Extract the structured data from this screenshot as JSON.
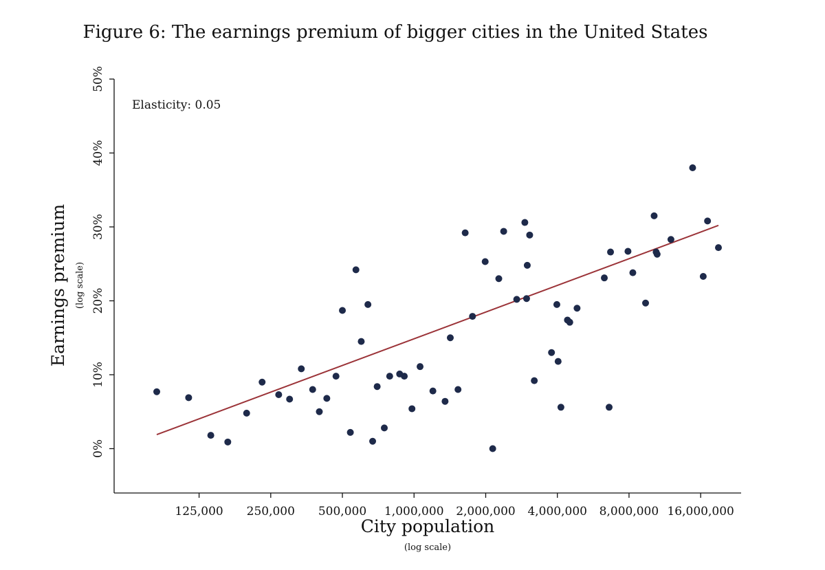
{
  "chart_data": {
    "type": "scatter",
    "title": "Figure 6: The earnings premium of bigger cities in the United States",
    "xlabel": "City population",
    "xlabel_note": "(log scale)",
    "ylabel": "Earnings premium",
    "ylabel_note": "(log scale)",
    "annotation": "Elasticity: 0.05",
    "x_scale": "log2",
    "xlim": [
      70000,
      24000000
    ],
    "ylim": [
      -0.06,
      0.5
    ],
    "x_ticks": [
      {
        "value": 125000,
        "label": "125,000"
      },
      {
        "value": 250000,
        "label": "250,000"
      },
      {
        "value": 500000,
        "label": "500,000"
      },
      {
        "value": 1000000,
        "label": "1,000,000"
      },
      {
        "value": 2000000,
        "label": "2,000,000"
      },
      {
        "value": 4000000,
        "label": "4,000,000"
      },
      {
        "value": 8000000,
        "label": "8,000,000"
      },
      {
        "value": 16000000,
        "label": "16,000,000"
      }
    ],
    "y_ticks": [
      {
        "value": 0,
        "label": "0%"
      },
      {
        "value": 0.1,
        "label": "10%"
      },
      {
        "value": 0.2,
        "label": "20%"
      },
      {
        "value": 0.3,
        "label": "30%"
      },
      {
        "value": 0.4,
        "label": "40%"
      },
      {
        "value": 0.5,
        "label": "50%"
      }
    ],
    "fit_line": {
      "x": [
        83000,
        19000000
      ],
      "y": [
        0.019,
        0.302
      ]
    },
    "points": [
      {
        "x": 83000,
        "y": 0.077
      },
      {
        "x": 113000,
        "y": 0.069
      },
      {
        "x": 140000,
        "y": 0.018
      },
      {
        "x": 165000,
        "y": 0.009
      },
      {
        "x": 198000,
        "y": 0.048
      },
      {
        "x": 230000,
        "y": 0.09
      },
      {
        "x": 270000,
        "y": 0.073
      },
      {
        "x": 300000,
        "y": 0.067
      },
      {
        "x": 336000,
        "y": 0.108
      },
      {
        "x": 375000,
        "y": 0.08
      },
      {
        "x": 400000,
        "y": 0.05
      },
      {
        "x": 430000,
        "y": 0.068
      },
      {
        "x": 470000,
        "y": 0.098
      },
      {
        "x": 500000,
        "y": 0.187
      },
      {
        "x": 540000,
        "y": 0.022
      },
      {
        "x": 570000,
        "y": 0.242
      },
      {
        "x": 600000,
        "y": 0.145
      },
      {
        "x": 640000,
        "y": 0.195
      },
      {
        "x": 670000,
        "y": 0.01
      },
      {
        "x": 700000,
        "y": 0.084
      },
      {
        "x": 750000,
        "y": 0.028
      },
      {
        "x": 790000,
        "y": 0.098
      },
      {
        "x": 870000,
        "y": 0.101
      },
      {
        "x": 910000,
        "y": 0.098
      },
      {
        "x": 980000,
        "y": 0.054
      },
      {
        "x": 1060000,
        "y": 0.111
      },
      {
        "x": 1200000,
        "y": 0.078
      },
      {
        "x": 1350000,
        "y": 0.064
      },
      {
        "x": 1420000,
        "y": 0.15
      },
      {
        "x": 1530000,
        "y": 0.08
      },
      {
        "x": 1640000,
        "y": 0.292
      },
      {
        "x": 1760000,
        "y": 0.179
      },
      {
        "x": 1990000,
        "y": 0.253
      },
      {
        "x": 2140000,
        "y": 0.0
      },
      {
        "x": 2270000,
        "y": 0.23
      },
      {
        "x": 2380000,
        "y": 0.294
      },
      {
        "x": 2700000,
        "y": 0.202
      },
      {
        "x": 2920000,
        "y": 0.306
      },
      {
        "x": 2970000,
        "y": 0.203
      },
      {
        "x": 2990000,
        "y": 0.248
      },
      {
        "x": 3060000,
        "y": 0.289
      },
      {
        "x": 3200000,
        "y": 0.092
      },
      {
        "x": 3780000,
        "y": 0.13
      },
      {
        "x": 3980000,
        "y": 0.195
      },
      {
        "x": 4030000,
        "y": 0.118
      },
      {
        "x": 4140000,
        "y": 0.056
      },
      {
        "x": 4410000,
        "y": 0.174
      },
      {
        "x": 4510000,
        "y": 0.171
      },
      {
        "x": 4840000,
        "y": 0.19
      },
      {
        "x": 6300000,
        "y": 0.231
      },
      {
        "x": 6600000,
        "y": 0.056
      },
      {
        "x": 6690000,
        "y": 0.266
      },
      {
        "x": 7920000,
        "y": 0.267
      },
      {
        "x": 8300000,
        "y": 0.238
      },
      {
        "x": 9390000,
        "y": 0.197
      },
      {
        "x": 10200000,
        "y": 0.315
      },
      {
        "x": 10400000,
        "y": 0.266
      },
      {
        "x": 10500000,
        "y": 0.263
      },
      {
        "x": 12000000,
        "y": 0.283
      },
      {
        "x": 14800000,
        "y": 0.38
      },
      {
        "x": 16400000,
        "y": 0.233
      },
      {
        "x": 17100000,
        "y": 0.308
      },
      {
        "x": 19000000,
        "y": 0.272
      }
    ]
  }
}
